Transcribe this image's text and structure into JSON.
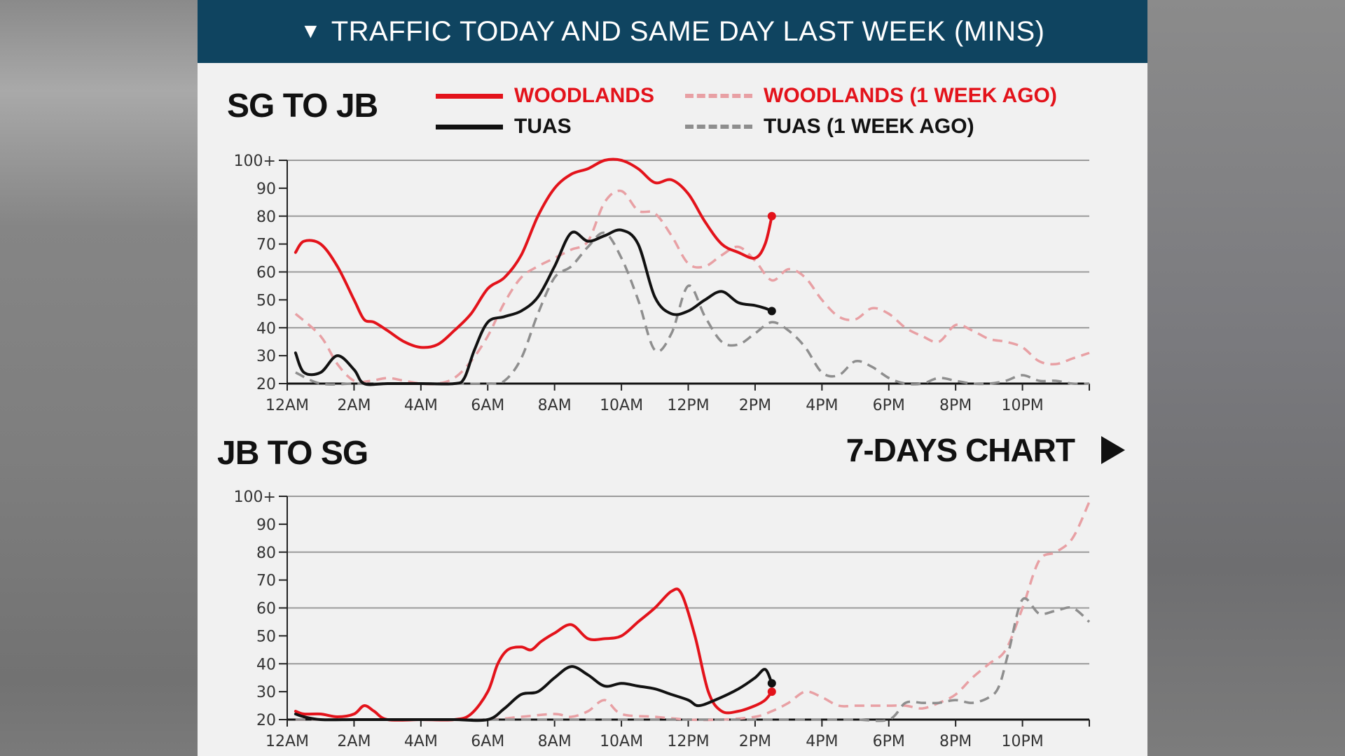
{
  "header": {
    "icon": "triangle-down-icon",
    "title": "TRAFFIC TODAY AND SAME DAY LAST WEEK (MINS)"
  },
  "legend": {
    "woodlands": "WOODLANDS",
    "woodlands_prev": "WOODLANDS (1 WEEK AGO)",
    "tuas": "TUAS",
    "tuas_prev": "TUAS (1 WEEK AGO)"
  },
  "seven_days": {
    "label": "7-DAYS CHART",
    "icon": "play-arrow-icon"
  },
  "colors": {
    "header_bg": "#0f4460",
    "woodlands": "#e3131b",
    "tuas": "#111111",
    "woodlands_prev": "#e8a0a4",
    "tuas_prev": "#8e8e8e"
  },
  "chart_data": [
    {
      "type": "line",
      "title": "SG TO JB",
      "xlabel": "",
      "ylabel": "",
      "xlim": [
        0,
        24
      ],
      "ylim": [
        20,
        100
      ],
      "yticks": [
        20,
        30,
        40,
        50,
        60,
        70,
        80,
        90,
        100
      ],
      "ytick_labels": [
        "20",
        "30",
        "40",
        "50",
        "60",
        "70",
        "80",
        "90",
        "100+"
      ],
      "xticks": [
        0,
        2,
        4,
        6,
        8,
        10,
        12,
        14,
        16,
        18,
        20,
        22,
        24
      ],
      "xtick_labels": [
        "12AM",
        "2AM",
        "4AM",
        "6AM",
        "8AM",
        "10AM",
        "12PM",
        "2PM",
        "4PM",
        "6PM",
        "8PM",
        "10PM",
        ""
      ],
      "grid": true,
      "series": [
        {
          "name": "WOODLANDS",
          "style": "solid",
          "color": "#e3131b",
          "end_marker": true,
          "x": [
            0.25,
            0.5,
            1,
            1.5,
            2,
            2.3,
            2.6,
            3,
            3.5,
            4,
            4.5,
            5,
            5.5,
            6,
            6.5,
            7,
            7.5,
            8,
            8.5,
            9,
            9.5,
            10,
            10.5,
            11,
            11.5,
            12,
            12.5,
            13,
            13.5,
            14,
            14.3,
            14.5
          ],
          "y": [
            67,
            71,
            70,
            62,
            50,
            43,
            42,
            39,
            35,
            33,
            34,
            39,
            45,
            54,
            58,
            66,
            80,
            90,
            95,
            97,
            100,
            100,
            97,
            92,
            93,
            88,
            78,
            70,
            67,
            65,
            70,
            80
          ]
        },
        {
          "name": "TUAS",
          "style": "solid",
          "color": "#111111",
          "end_marker": true,
          "x": [
            0.25,
            0.5,
            1,
            1.5,
            2,
            2.3,
            3,
            4,
            5,
            5.3,
            5.6,
            6,
            6.5,
            7,
            7.5,
            8,
            8.5,
            9,
            9.5,
            10,
            10.5,
            11,
            11.5,
            12,
            12.5,
            13,
            13.5,
            14,
            14.3,
            14.5
          ],
          "y": [
            31,
            24,
            24,
            30,
            25,
            20,
            20,
            20,
            20,
            22,
            32,
            42,
            44,
            46,
            51,
            62,
            74,
            71,
            73,
            75,
            70,
            51,
            45,
            46,
            50,
            53,
            49,
            48,
            47,
            46
          ]
        },
        {
          "name": "WOODLANDS (1 WEEK AGO)",
          "style": "dashed",
          "color": "#e8a0a4",
          "x": [
            0.25,
            1,
            1.5,
            2,
            2.5,
            3,
            3.5,
            4,
            4.5,
            5,
            5.5,
            6,
            6.5,
            7,
            7.5,
            8,
            8.5,
            9,
            9.5,
            10,
            10.5,
            11,
            11.5,
            12,
            12.5,
            13,
            13.5,
            14,
            14.5,
            15,
            15.5,
            16,
            16.5,
            17,
            17.5,
            18,
            18.5,
            19,
            19.5,
            20,
            20.5,
            21,
            21.5,
            22,
            22.5,
            23,
            23.5,
            24
          ],
          "y": [
            45,
            37,
            27,
            21,
            21,
            22,
            21,
            20,
            20,
            22,
            28,
            37,
            49,
            58,
            62,
            65,
            68,
            71,
            85,
            89,
            82,
            81,
            73,
            63,
            62,
            66,
            69,
            64,
            57,
            61,
            58,
            50,
            44,
            43,
            47,
            45,
            40,
            37,
            35,
            41,
            39,
            36,
            35,
            33,
            28,
            27,
            29,
            31
          ]
        },
        {
          "name": "TUAS (1 WEEK AGO)",
          "style": "dashed",
          "color": "#8e8e8e",
          "x": [
            0.25,
            1,
            2,
            3,
            4,
            5,
            6,
            6.5,
            7,
            7.5,
            8,
            8.5,
            9,
            9.5,
            10,
            10.5,
            11,
            11.5,
            12,
            12.5,
            13,
            13.5,
            14,
            14.5,
            15,
            15.5,
            16,
            16.5,
            17,
            17.5,
            18,
            18.5,
            19,
            19.5,
            20,
            20.5,
            21,
            21.5,
            22,
            22.5,
            23,
            23.5,
            24
          ],
          "y": [
            24,
            20,
            20,
            20,
            20,
            20,
            20,
            21,
            29,
            45,
            58,
            62,
            69,
            74,
            65,
            50,
            32,
            38,
            55,
            44,
            35,
            34,
            38,
            42,
            39,
            33,
            24,
            23,
            28,
            26,
            22,
            20,
            20,
            22,
            21,
            20,
            20,
            21,
            23,
            21,
            21,
            20,
            20
          ]
        }
      ]
    },
    {
      "type": "line",
      "title": "JB TO SG",
      "xlabel": "",
      "ylabel": "",
      "xlim": [
        0,
        24
      ],
      "ylim": [
        20,
        100
      ],
      "yticks": [
        20,
        30,
        40,
        50,
        60,
        70,
        80,
        90,
        100
      ],
      "ytick_labels": [
        "20",
        "30",
        "40",
        "50",
        "60",
        "70",
        "80",
        "90",
        "100+"
      ],
      "xticks": [
        0,
        2,
        4,
        6,
        8,
        10,
        12,
        14,
        16,
        18,
        20,
        22,
        24
      ],
      "xtick_labels": [
        "12AM",
        "2AM",
        "4AM",
        "6AM",
        "8AM",
        "10AM",
        "12PM",
        "2PM",
        "4PM",
        "6PM",
        "8PM",
        "10PM",
        ""
      ],
      "grid": true,
      "series": [
        {
          "name": "WOODLANDS",
          "style": "solid",
          "color": "#e3131b",
          "end_marker": true,
          "x": [
            0.25,
            0.5,
            1,
            1.5,
            2,
            2.3,
            2.6,
            3,
            4,
            5,
            5.5,
            6,
            6.3,
            6.6,
            7,
            7.3,
            7.6,
            8,
            8.5,
            9,
            9.5,
            10,
            10.5,
            11,
            11.5,
            11.8,
            12.2,
            12.6,
            13,
            13.5,
            14,
            14.3,
            14.5
          ],
          "y": [
            23,
            22,
            22,
            21,
            22,
            25,
            23,
            20,
            20,
            20,
            22,
            30,
            40,
            45,
            46,
            45,
            48,
            51,
            54,
            49,
            49,
            50,
            55,
            60,
            66,
            65,
            50,
            30,
            23,
            23,
            25,
            27,
            30
          ]
        },
        {
          "name": "TUAS",
          "style": "solid",
          "color": "#111111",
          "end_marker": true,
          "x": [
            0.25,
            0.5,
            1,
            2,
            3,
            4,
            5,
            6,
            6.5,
            7,
            7.5,
            8,
            8.5,
            9,
            9.5,
            10,
            10.5,
            11,
            11.5,
            12,
            12.3,
            12.8,
            13.5,
            14,
            14.3,
            14.5
          ],
          "y": [
            22,
            21,
            20,
            20,
            20,
            20,
            20,
            20,
            24,
            29,
            30,
            35,
            39,
            36,
            32,
            33,
            32,
            31,
            29,
            27,
            25,
            27,
            31,
            35,
            38,
            33
          ]
        },
        {
          "name": "WOODLANDS (1 WEEK AGO)",
          "style": "dashed",
          "color": "#e8a0a4",
          "x": [
            0.25,
            2,
            4,
            6,
            7,
            8,
            8.5,
            9,
            9.5,
            10,
            11,
            12,
            13,
            14,
            14.5,
            15,
            15.5,
            16,
            16.5,
            17,
            17.5,
            18,
            18.5,
            19,
            19.5,
            20,
            20.5,
            21,
            21.5,
            22,
            22.5,
            23,
            23.5,
            24
          ],
          "y": [
            20,
            20,
            20,
            20,
            21,
            22,
            21,
            23,
            27,
            22,
            21,
            20,
            20,
            21,
            23,
            26,
            30,
            28,
            25,
            25,
            25,
            25,
            25,
            24,
            26,
            29,
            35,
            40,
            45,
            60,
            77,
            80,
            85,
            98
          ]
        },
        {
          "name": "TUAS (1 WEEK AGO)",
          "style": "dashed",
          "color": "#8e8e8e",
          "x": [
            0.25,
            2,
            4,
            6,
            8,
            10,
            12,
            14,
            16,
            17,
            18,
            18.5,
            19,
            19.5,
            20,
            20.5,
            21,
            21.3,
            21.6,
            22,
            22.5,
            23,
            23.5,
            24
          ],
          "y": [
            20,
            20,
            20,
            20,
            20,
            20,
            20,
            20,
            20,
            20,
            20,
            26,
            26,
            26,
            27,
            26,
            28,
            32,
            45,
            63,
            58,
            59,
            60,
            55
          ]
        }
      ]
    }
  ]
}
